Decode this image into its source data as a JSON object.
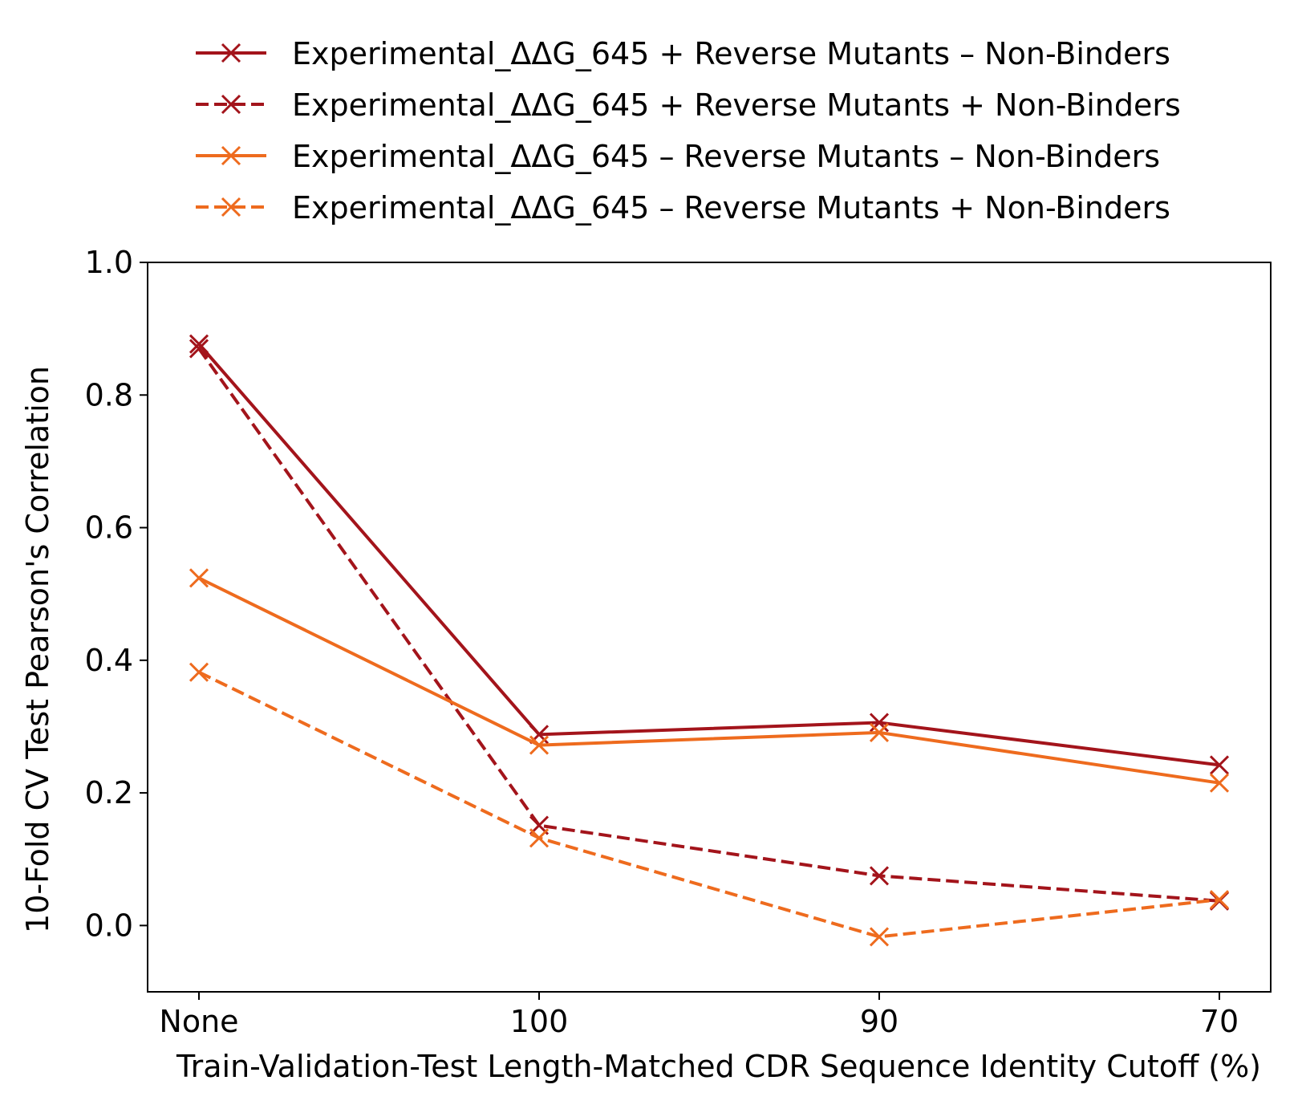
{
  "chart_data": {
    "type": "line",
    "x_categories": [
      "None",
      "100",
      "90",
      "70"
    ],
    "xlabel": "Train-Validation-Test Length-Matched CDR Sequence Identity Cutoff (%)",
    "ylabel": "10-Fold CV Test Pearson's Correlation",
    "ylim": [
      -0.1,
      1.0
    ],
    "yticks": [
      "0.0",
      "0.2",
      "0.4",
      "0.6",
      "0.8",
      "1.0"
    ],
    "legend_position": "top, above plot",
    "grid": false,
    "series": [
      {
        "name": "Experimental_ΔΔG_645 + Reverse Mutants – Non-Binders",
        "values": [
          0.877,
          0.288,
          0.306,
          0.242
        ],
        "color": "#a3141b",
        "dashed": false
      },
      {
        "name": "Experimental_ΔΔG_645 + Reverse Mutants + Non-Binders",
        "values": [
          0.87,
          0.151,
          0.075,
          0.037
        ],
        "color": "#a3141b",
        "dashed": true
      },
      {
        "name": "Experimental_ΔΔG_645 – Reverse Mutants – Non-Binders",
        "values": [
          0.524,
          0.272,
          0.291,
          0.215
        ],
        "color": "#ee6b1e",
        "dashed": false
      },
      {
        "name": "Experimental_ΔΔG_645 – Reverse Mutants + Non-Binders",
        "values": [
          0.382,
          0.132,
          -0.017,
          0.039
        ],
        "color": "#ee6b1e",
        "dashed": true
      }
    ]
  }
}
